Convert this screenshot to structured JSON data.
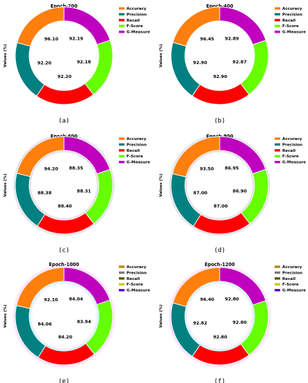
{
  "legend_labels": [
    "Accuracy",
    "Precision",
    "Recall",
    "F-Score",
    "G-Measure"
  ],
  "ylabel": "Values (%)",
  "colors_clean": [
    "#ff7f0e",
    "#008080",
    "#ff0000",
    "#66ff00",
    "#bf00bf"
  ],
  "colors_glow": [
    "#ff7f0e",
    "#008080",
    "#ff0000",
    "#66ff00",
    "#bf00bf"
  ],
  "glow_legend_colors": [
    "#b8860b",
    "#7a7a7a",
    "#5a5a00",
    "#c9c900",
    "#5a00d8"
  ],
  "chart_data": [
    {
      "type": "pie",
      "donut": true,
      "title": "Epoch-200",
      "caption": "(a)",
      "style": "clean",
      "categories": [
        "Accuracy",
        "Precision",
        "Recall",
        "F-Score",
        "G-Measure"
      ],
      "values": [
        96.1,
        92.2,
        92.2,
        92.18,
        92.19
      ],
      "labels": [
        "96.10",
        "92.20",
        "92.20",
        "92.18",
        "92.19"
      ],
      "legend_position": "top-right"
    },
    {
      "type": "pie",
      "donut": true,
      "title": "Epoch-400",
      "caption": "(b)",
      "style": "clean",
      "categories": [
        "Accuracy",
        "Precision",
        "Recall",
        "F-Score",
        "G-Measure"
      ],
      "values": [
        96.45,
        92.9,
        92.9,
        92.87,
        92.89
      ],
      "labels": [
        "96.45",
        "92.90",
        "92.90",
        "92.87",
        "92.89"
      ],
      "legend_position": "top-right"
    },
    {
      "type": "pie",
      "donut": true,
      "title": "Epoch-600",
      "caption": "(c)",
      "style": "shadow",
      "categories": [
        "Accuracy",
        "Precision",
        "Recall",
        "F-Score",
        "G-Measure"
      ],
      "values": [
        94.2,
        88.38,
        88.4,
        88.31,
        88.35
      ],
      "labels": [
        "94.20",
        "88.38",
        "88.40",
        "88.31",
        "88.35"
      ],
      "legend_position": "top-right"
    },
    {
      "type": "pie",
      "donut": true,
      "title": "Epoch-800",
      "caption": "(d)",
      "style": "shadow",
      "categories": [
        "Accuracy",
        "Precision",
        "Recall",
        "F-Score",
        "G-Measure"
      ],
      "values": [
        93.5,
        87.0,
        87.0,
        86.9,
        86.95
      ],
      "labels": [
        "93.50",
        "87.00",
        "87.00",
        "86.90",
        "86.95"
      ],
      "legend_position": "top-right"
    },
    {
      "type": "pie",
      "donut": true,
      "title": "Epoch-1000",
      "caption": "(e)",
      "style": "glow",
      "categories": [
        "Accuracy",
        "Precision",
        "Recall",
        "F-Score",
        "G-Measure"
      ],
      "values": [
        92.1,
        84.06,
        84.2,
        83.94,
        84.04
      ],
      "labels": [
        "92.10",
        "84.06",
        "84.20",
        "83.94",
        "84.04"
      ],
      "legend_position": "top-right"
    },
    {
      "type": "pie",
      "donut": true,
      "title": "Epoch-1200",
      "caption": "(f)",
      "style": "glow",
      "categories": [
        "Accuracy",
        "Precision",
        "Recall",
        "F-Score",
        "G-Measure"
      ],
      "values": [
        96.4,
        92.82,
        92.8,
        92.8,
        92.8
      ],
      "labels": [
        "96.40",
        "92.82",
        "92.80",
        "92.80",
        "92.80"
      ],
      "legend_position": "top-right"
    }
  ]
}
